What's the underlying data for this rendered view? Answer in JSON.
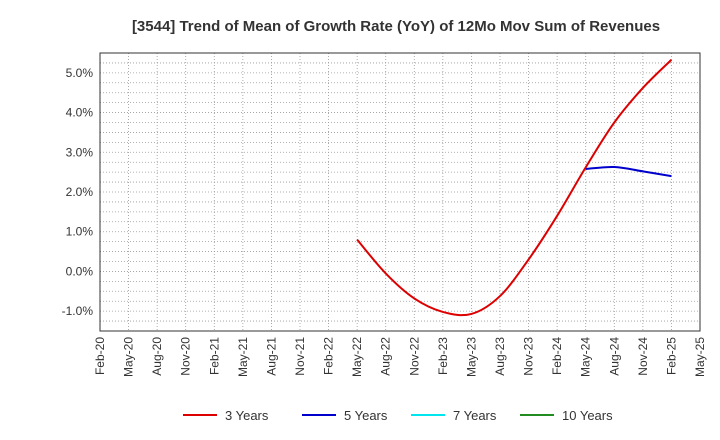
{
  "chart_data": {
    "type": "line",
    "title": "[3544]  Trend of Mean of Growth Rate (YoY) of 12Mo Mov Sum of Revenues",
    "xlabel": "",
    "ylabel": "",
    "ylim": [
      -1.5,
      5.5
    ],
    "y_ticks": [
      -1.0,
      0.0,
      1.0,
      2.0,
      3.0,
      4.0,
      5.0
    ],
    "y_tick_labels": [
      "-1.0%",
      "0.0%",
      "1.0%",
      "2.0%",
      "3.0%",
      "4.0%",
      "5.0%"
    ],
    "x_tick_labels": [
      "Feb-20",
      "May-20",
      "Aug-20",
      "Nov-20",
      "Feb-21",
      "May-21",
      "Aug-21",
      "Nov-21",
      "Feb-22",
      "May-22",
      "Aug-22",
      "Nov-22",
      "Feb-23",
      "May-23",
      "Aug-23",
      "Nov-23",
      "Feb-24",
      "May-24",
      "Aug-24",
      "Nov-24",
      "Feb-25",
      "May-25"
    ],
    "grid": true,
    "legend_position": "bottom",
    "series": [
      {
        "name": "3 Years",
        "color": "#dd0000",
        "x": [
          9,
          10,
          11,
          12,
          13,
          14,
          15,
          16,
          17,
          18,
          19,
          20
        ],
        "values": [
          0.8,
          -0.05,
          -0.68,
          -1.02,
          -1.07,
          -0.62,
          0.3,
          1.4,
          2.62,
          3.75,
          4.62,
          5.33
        ]
      },
      {
        "name": "5 Years",
        "color": "#0000cc",
        "x": [
          17,
          18,
          19,
          20
        ],
        "values": [
          2.58,
          2.63,
          2.52,
          2.4
        ]
      },
      {
        "name": "7 Years",
        "color": "#00e5ee",
        "x": [],
        "values": []
      },
      {
        "name": "10 Years",
        "color": "#228b22",
        "x": [],
        "values": []
      }
    ]
  }
}
